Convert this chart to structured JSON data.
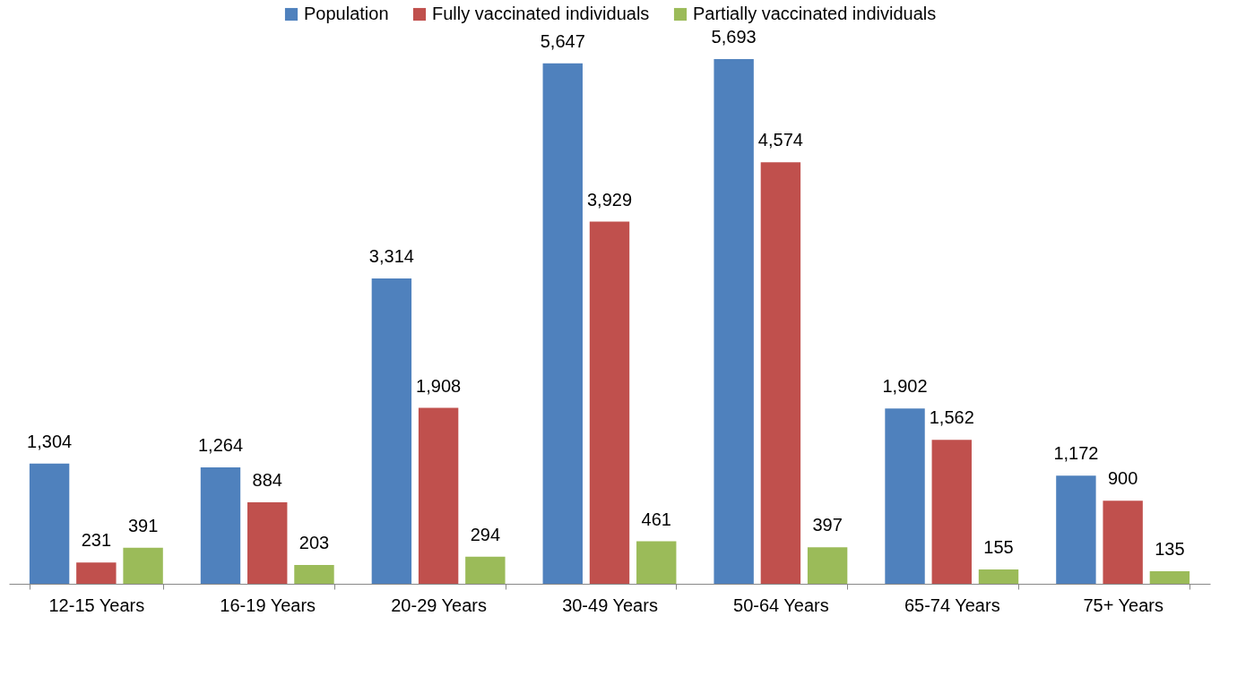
{
  "chart_data": {
    "type": "bar",
    "categories": [
      "12-15 Years",
      "16-19 Years",
      "20-29 Years",
      "30-49 Years",
      "50-64 Years",
      "65-74 Years",
      "75+ Years"
    ],
    "series": [
      {
        "name": "Population",
        "color": "#4f81bd",
        "values": [
          1304,
          1264,
          3314,
          5647,
          5693,
          1902,
          1172
        ],
        "value_labels": [
          "1,304",
          "1,264",
          "3,314",
          "5,647",
          "5,693",
          "1,902",
          "1,172"
        ]
      },
      {
        "name": "Fully vaccinated individuals",
        "color": "#c0504d",
        "values": [
          231,
          884,
          1908,
          3929,
          4574,
          1562,
          900
        ],
        "value_labels": [
          "231",
          "884",
          "1,908",
          "3,929",
          "4,574",
          "1,562",
          "900"
        ]
      },
      {
        "name": "Partially vaccinated individuals",
        "color": "#9bbb59",
        "values": [
          391,
          203,
          294,
          461,
          397,
          155,
          135
        ],
        "value_labels": [
          "391",
          "203",
          "294",
          "461",
          "397",
          "155",
          "135"
        ]
      }
    ],
    "legend": "top",
    "grid": false
  }
}
